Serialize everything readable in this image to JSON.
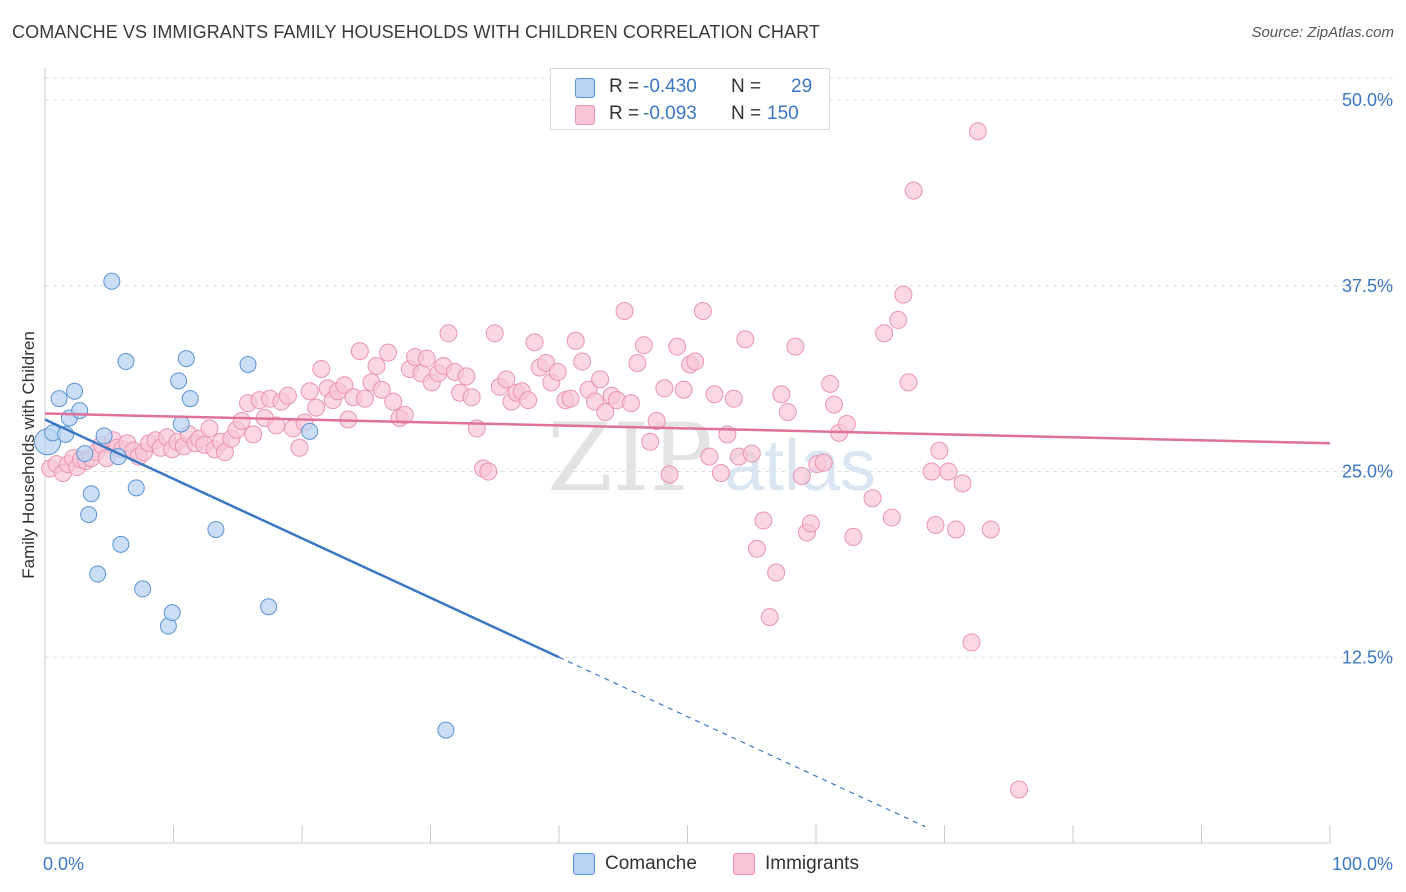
{
  "title": "COMANCHE VS IMMIGRANTS FAMILY HOUSEHOLDS WITH CHILDREN CORRELATION CHART",
  "source": "Source: ZipAtlas.com",
  "watermark": {
    "zip": "ZIP",
    "atlas": "atlas"
  },
  "colors": {
    "blue": "#3b78c4",
    "blue_fill": "#b8d4f2",
    "blue_stroke": "#5b93d4",
    "pink": "#e0719a",
    "pink_fill": "#f8c6d6",
    "pink_stroke": "#e995b1",
    "grid": "#dddddd",
    "tick_label": "#3b78c4"
  },
  "legend": {
    "rows": [
      {
        "label": "R =",
        "r": "-0.430",
        "n_label": "N =",
        "n": "29"
      },
      {
        "label": "R =",
        "r": "-0.093",
        "n_label": "N =",
        "n": "150"
      }
    ]
  },
  "bottom_legend": {
    "comanche": "Comanche",
    "immigrants": "Immigrants"
  },
  "chart_data": {
    "type": "scatter",
    "title": "COMANCHE VS IMMIGRANTS FAMILY HOUSEHOLDS WITH CHILDREN CORRELATION CHART",
    "xlabel": "",
    "ylabel": "Family Households with Children",
    "xlim": [
      0,
      100
    ],
    "ylim": [
      0,
      50
    ],
    "x_tick_labels": [
      "0.0%",
      "100.0%"
    ],
    "y_ticks": [
      12.5,
      25.0,
      37.5,
      50.0
    ],
    "y_tick_labels": [
      "12.5%",
      "25.0%",
      "37.5%",
      "50.0%"
    ],
    "grid": true,
    "legend_position": "top-center",
    "series": [
      {
        "name": "Comanche",
        "r": -0.43,
        "n": 29,
        "trend": {
          "x0": 0,
          "y0": 28.5,
          "x1": 40,
          "y1": 12.5,
          "dashed_to_x": 68.5
        },
        "points": [
          [
            0.2,
            27.0
          ],
          [
            0.6,
            27.6
          ],
          [
            1.1,
            29.9
          ],
          [
            1.9,
            28.6
          ],
          [
            2.3,
            30.4
          ],
          [
            2.7,
            29.1
          ],
          [
            1.6,
            27.5
          ],
          [
            3.1,
            26.2
          ],
          [
            3.4,
            22.1
          ],
          [
            3.6,
            23.5
          ],
          [
            4.1,
            18.1
          ],
          [
            4.6,
            27.4
          ],
          [
            5.2,
            37.8
          ],
          [
            5.7,
            26.0
          ],
          [
            5.9,
            20.1
          ],
          [
            6.3,
            32.4
          ],
          [
            7.1,
            23.9
          ],
          [
            7.6,
            17.1
          ],
          [
            9.6,
            14.6
          ],
          [
            9.9,
            15.5
          ],
          [
            10.4,
            31.1
          ],
          [
            10.6,
            28.2
          ],
          [
            11.0,
            32.6
          ],
          [
            11.3,
            29.9
          ],
          [
            13.3,
            21.1
          ],
          [
            15.8,
            32.2
          ],
          [
            17.4,
            15.9
          ],
          [
            20.6,
            27.7
          ],
          [
            31.2,
            7.6
          ]
        ]
      },
      {
        "name": "Immigrants",
        "r": -0.093,
        "n": 150,
        "trend": {
          "x0": 0,
          "y0": 28.9,
          "x1": 100,
          "y1": 26.9
        },
        "points": [
          [
            0.4,
            25.2
          ],
          [
            0.9,
            25.5
          ],
          [
            1.4,
            24.9
          ],
          [
            1.8,
            25.5
          ],
          [
            2.2,
            25.9
          ],
          [
            2.5,
            25.3
          ],
          [
            2.8,
            25.8
          ],
          [
            3.2,
            25.7
          ],
          [
            3.6,
            25.9
          ],
          [
            4.0,
            26.3
          ],
          [
            4.4,
            26.8
          ],
          [
            4.8,
            25.9
          ],
          [
            5.3,
            27.1
          ],
          [
            5.6,
            26.6
          ],
          [
            6.0,
            26.5
          ],
          [
            6.4,
            26.9
          ],
          [
            6.9,
            26.4
          ],
          [
            7.3,
            26.0
          ],
          [
            7.7,
            26.3
          ],
          [
            8.1,
            26.9
          ],
          [
            8.6,
            27.1
          ],
          [
            9.0,
            26.6
          ],
          [
            9.5,
            27.3
          ],
          [
            9.9,
            26.5
          ],
          [
            10.3,
            27.0
          ],
          [
            10.8,
            26.7
          ],
          [
            11.2,
            27.5
          ],
          [
            11.7,
            26.9
          ],
          [
            12.0,
            27.2
          ],
          [
            12.4,
            26.8
          ],
          [
            12.8,
            27.9
          ],
          [
            13.2,
            26.5
          ],
          [
            13.7,
            27.0
          ],
          [
            14.0,
            26.3
          ],
          [
            14.5,
            27.2
          ],
          [
            14.9,
            27.8
          ],
          [
            15.3,
            28.4
          ],
          [
            15.8,
            29.6
          ],
          [
            16.2,
            27.5
          ],
          [
            16.7,
            29.8
          ],
          [
            17.1,
            28.6
          ],
          [
            17.5,
            29.9
          ],
          [
            18.0,
            28.1
          ],
          [
            18.4,
            29.7
          ],
          [
            18.9,
            30.1
          ],
          [
            19.3,
            27.9
          ],
          [
            19.8,
            26.6
          ],
          [
            20.2,
            28.3
          ],
          [
            20.6,
            30.4
          ],
          [
            21.1,
            29.3
          ],
          [
            21.5,
            31.9
          ],
          [
            22.0,
            30.6
          ],
          [
            22.4,
            29.8
          ],
          [
            22.8,
            30.4
          ],
          [
            23.3,
            30.8
          ],
          [
            23.6,
            28.5
          ],
          [
            24.0,
            30.0
          ],
          [
            24.5,
            33.1
          ],
          [
            24.9,
            29.9
          ],
          [
            25.4,
            31.0
          ],
          [
            25.8,
            32.1
          ],
          [
            26.2,
            30.5
          ],
          [
            26.7,
            33.0
          ],
          [
            27.1,
            29.7
          ],
          [
            27.6,
            28.6
          ],
          [
            28.0,
            28.8
          ],
          [
            28.4,
            31.9
          ],
          [
            28.8,
            32.7
          ],
          [
            29.3,
            31.6
          ],
          [
            29.7,
            32.6
          ],
          [
            30.1,
            31.0
          ],
          [
            30.6,
            31.6
          ],
          [
            31.0,
            32.1
          ],
          [
            31.4,
            34.3
          ],
          [
            31.9,
            31.7
          ],
          [
            32.3,
            30.3
          ],
          [
            32.8,
            31.4
          ],
          [
            33.2,
            30.0
          ],
          [
            33.6,
            27.9
          ],
          [
            34.1,
            25.2
          ],
          [
            34.5,
            25.0
          ],
          [
            35.0,
            34.3
          ],
          [
            35.4,
            30.7
          ],
          [
            35.9,
            31.2
          ],
          [
            36.3,
            29.7
          ],
          [
            36.7,
            30.3
          ],
          [
            37.1,
            30.4
          ],
          [
            37.6,
            29.8
          ],
          [
            38.1,
            33.7
          ],
          [
            38.5,
            32.0
          ],
          [
            39.0,
            32.3
          ],
          [
            39.4,
            31.0
          ],
          [
            39.9,
            31.7
          ],
          [
            40.5,
            29.8
          ],
          [
            40.9,
            29.9
          ],
          [
            41.3,
            33.8
          ],
          [
            41.8,
            32.4
          ],
          [
            42.3,
            30.5
          ],
          [
            42.8,
            29.7
          ],
          [
            43.2,
            31.2
          ],
          [
            43.6,
            29.0
          ],
          [
            44.1,
            30.1
          ],
          [
            44.5,
            29.8
          ],
          [
            45.1,
            35.8
          ],
          [
            45.6,
            29.6
          ],
          [
            46.1,
            32.3
          ],
          [
            46.6,
            33.5
          ],
          [
            47.1,
            27.0
          ],
          [
            47.6,
            28.4
          ],
          [
            48.2,
            30.6
          ],
          [
            48.6,
            24.8
          ],
          [
            49.2,
            33.4
          ],
          [
            49.7,
            30.5
          ],
          [
            50.2,
            32.2
          ],
          [
            50.6,
            32.4
          ],
          [
            51.2,
            35.8
          ],
          [
            51.7,
            26.0
          ],
          [
            52.1,
            30.2
          ],
          [
            52.6,
            24.9
          ],
          [
            53.1,
            27.5
          ],
          [
            53.6,
            29.9
          ],
          [
            54.0,
            26.0
          ],
          [
            54.5,
            33.9
          ],
          [
            55.0,
            26.2
          ],
          [
            55.4,
            19.8
          ],
          [
            55.9,
            21.7
          ],
          [
            56.4,
            15.2
          ],
          [
            56.9,
            18.2
          ],
          [
            57.3,
            30.2
          ],
          [
            57.8,
            29.0
          ],
          [
            58.4,
            33.4
          ],
          [
            58.9,
            24.7
          ],
          [
            59.3,
            20.9
          ],
          [
            59.6,
            21.5
          ],
          [
            60.1,
            25.5
          ],
          [
            60.6,
            25.6
          ],
          [
            61.1,
            30.9
          ],
          [
            61.4,
            29.5
          ],
          [
            61.8,
            27.6
          ],
          [
            62.4,
            28.2
          ],
          [
            62.9,
            20.6
          ],
          [
            64.4,
            23.2
          ],
          [
            65.3,
            34.3
          ],
          [
            65.9,
            21.9
          ],
          [
            66.4,
            35.2
          ],
          [
            66.8,
            36.9
          ],
          [
            67.2,
            31.0
          ],
          [
            67.6,
            43.9
          ],
          [
            69.0,
            25.0
          ],
          [
            69.3,
            21.4
          ],
          [
            69.6,
            26.4
          ],
          [
            70.3,
            25.0
          ],
          [
            70.9,
            21.1
          ],
          [
            71.4,
            24.2
          ],
          [
            72.1,
            13.5
          ],
          [
            72.6,
            47.9
          ],
          [
            73.6,
            21.1
          ],
          [
            75.8,
            3.6
          ]
        ]
      }
    ]
  }
}
